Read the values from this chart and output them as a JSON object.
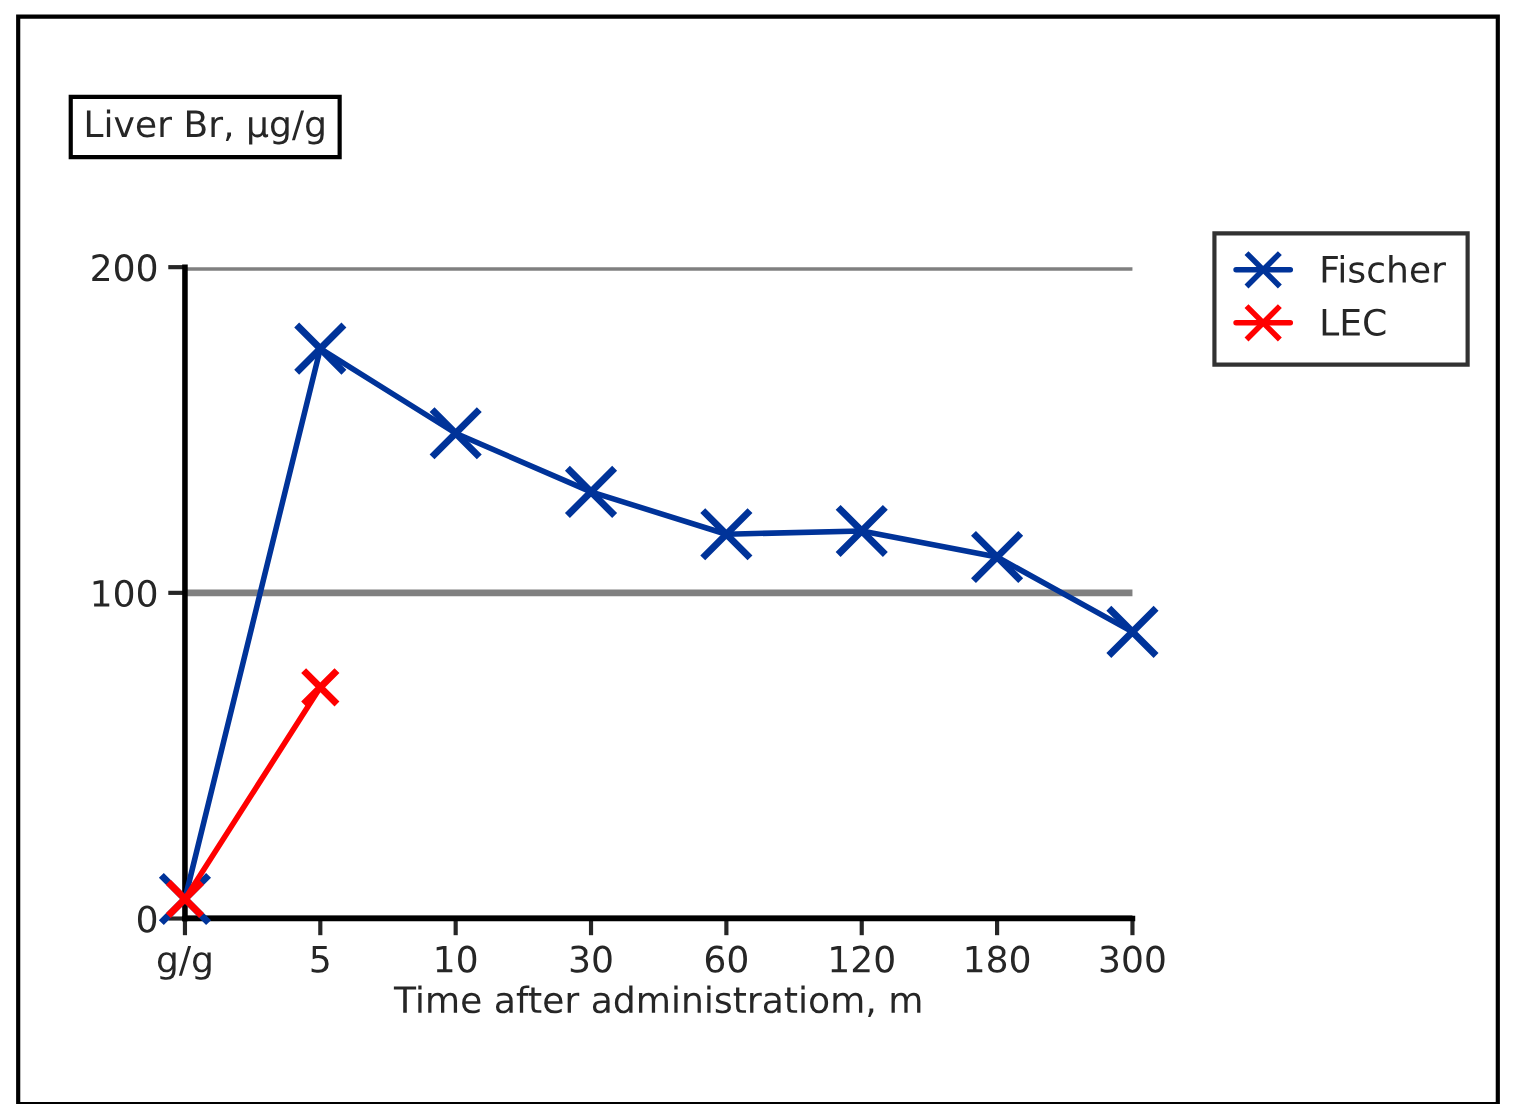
{
  "chart_data": {
    "type": "line",
    "ylabel": "Liver Br, μg/g",
    "xlabel": "Time after administratiom, m",
    "categories": [
      "g/g",
      "5",
      "10",
      "30",
      "60",
      "120",
      "180",
      "300"
    ],
    "series": [
      {
        "name": "Fischer",
        "color": "#003399",
        "values": [
          6,
          175,
          149,
          131,
          118,
          119,
          111,
          88
        ]
      },
      {
        "name": "LEC",
        "color": "#ff0000",
        "values": [
          6,
          71,
          null,
          null,
          null,
          null,
          null,
          null
        ]
      }
    ],
    "ylim": [
      0,
      200
    ],
    "yticks": [
      0,
      100,
      200
    ],
    "grid": "y",
    "legend": "top right",
    "marker": "cross",
    "line_style": "solid"
  }
}
